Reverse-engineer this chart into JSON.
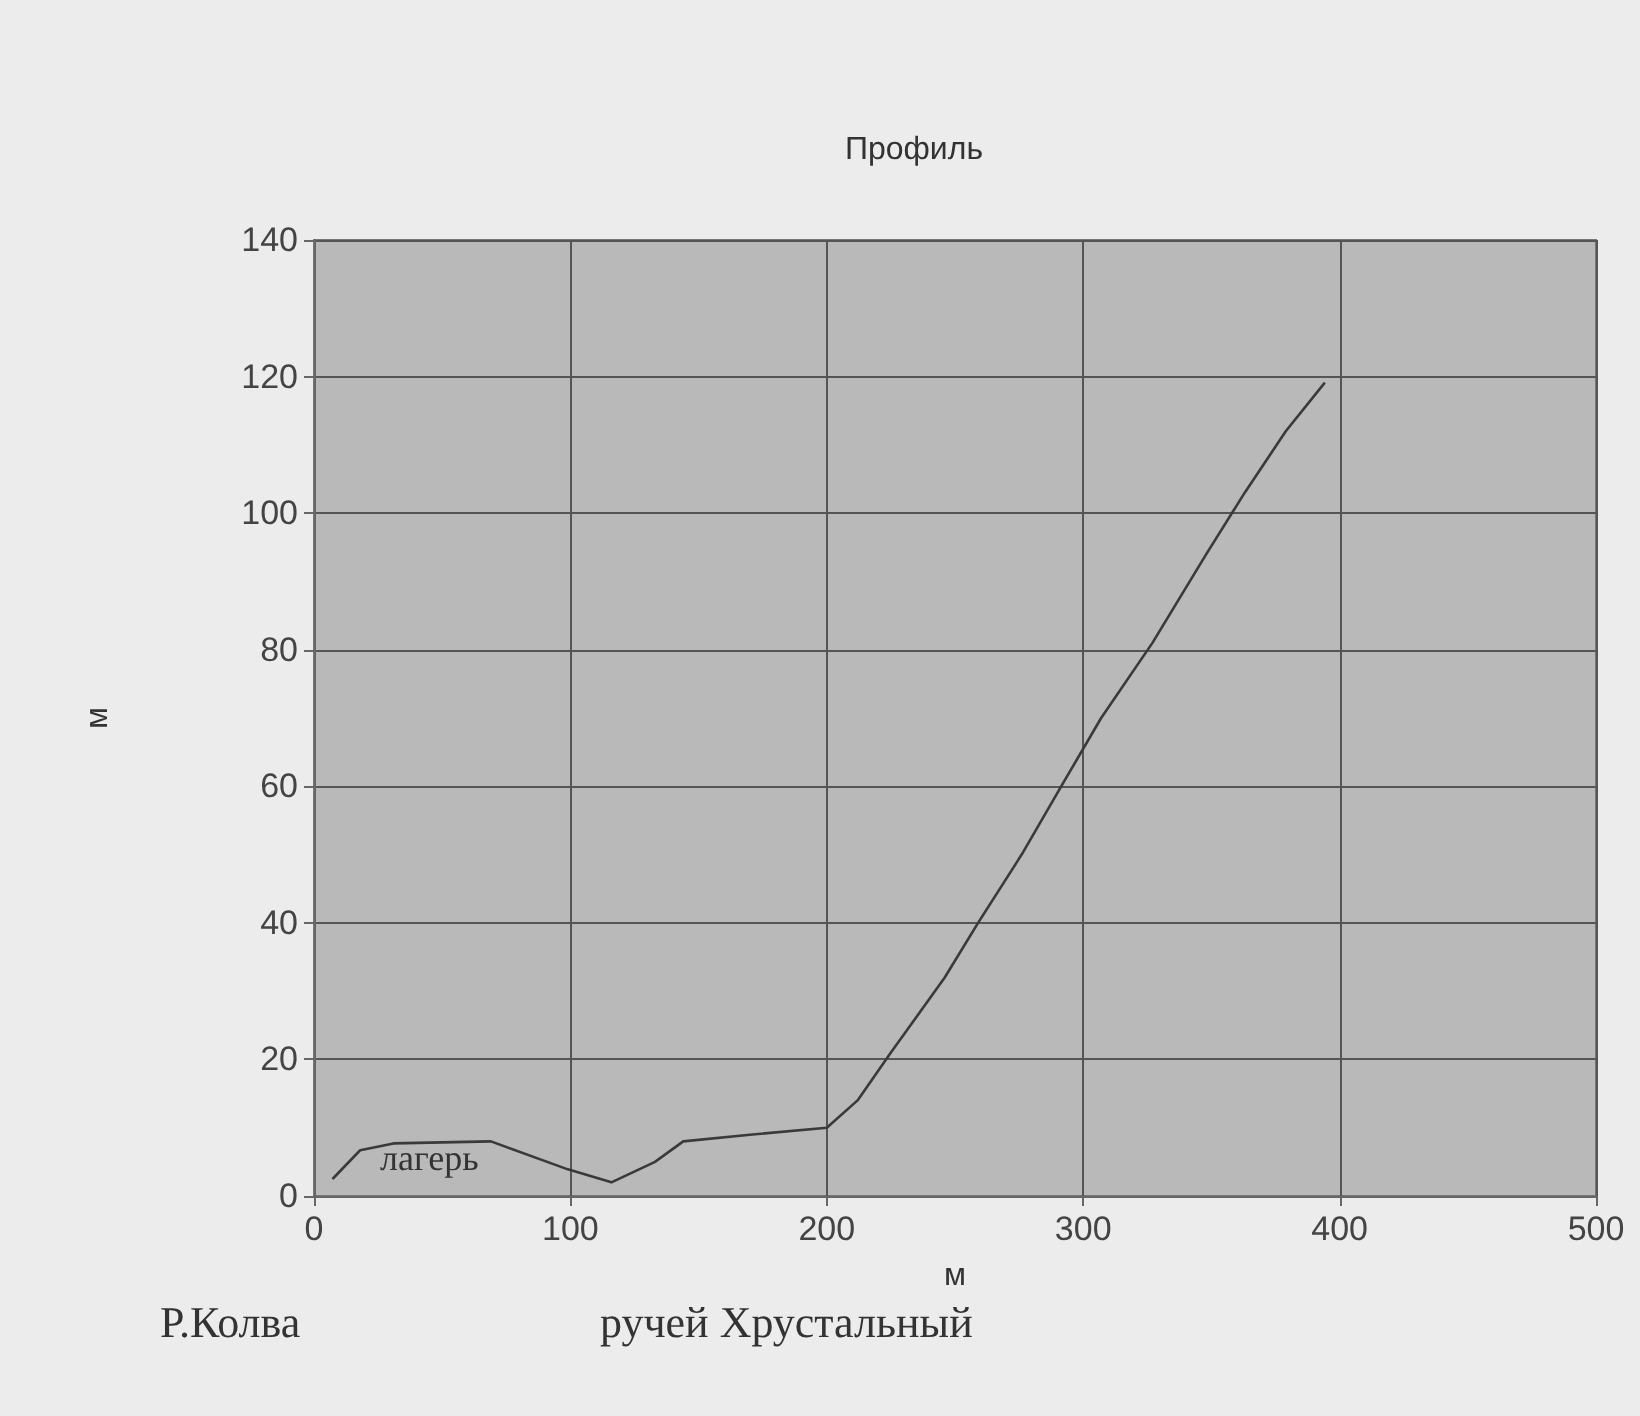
{
  "chart_data": {
    "type": "line",
    "title": "Профиль",
    "xlabel": "м",
    "ylabel": "м",
    "x": [
      7.5,
      18,
      31,
      69,
      99,
      116,
      133,
      144,
      171,
      200,
      212,
      225,
      246,
      259,
      276,
      293,
      307,
      327,
      348,
      363,
      379,
      394
    ],
    "series": [
      {
        "color": "#3a3a3a",
        "values": [
          2.6,
          6.7,
          7.7,
          8,
          3.9,
          2,
          5,
          8,
          9,
          10,
          14,
          21,
          32,
          40,
          50,
          61,
          70,
          81,
          94,
          103,
          112,
          119
        ]
      }
    ],
    "xlim": [
      0,
      500
    ],
    "xticks": [
      0,
      100,
      200,
      300,
      400,
      500
    ],
    "ylim": [
      0,
      140
    ],
    "yticks": [
      0,
      20,
      40,
      60,
      80,
      100,
      120,
      140
    ],
    "grid": true,
    "marker": "none",
    "line_style": "solid",
    "annotations": [
      "лагерь",
      "Р.Колва",
      "ручей Хрустальный"
    ]
  }
}
